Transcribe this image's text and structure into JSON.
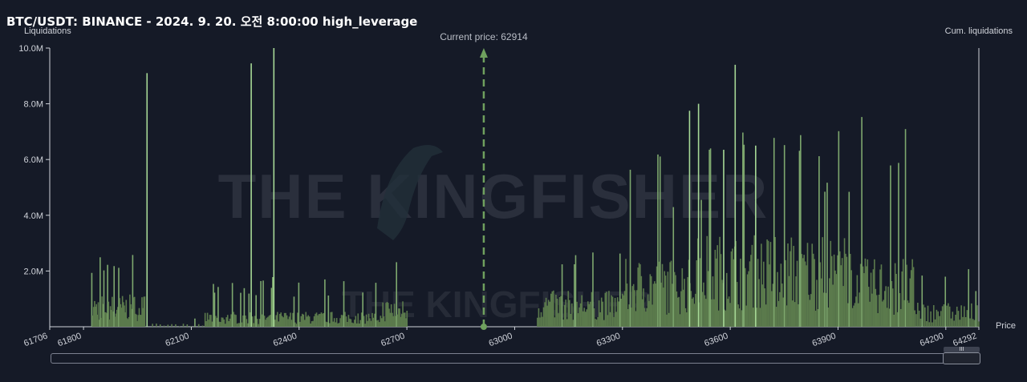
{
  "chart_data": {
    "type": "bar",
    "title": "BTC/USDT: BINANCE - 2024. 9. 20. 오전 8:00:00 high_leverage",
    "ylabel": "Liquidations",
    "y2label": "Cum. liquidations",
    "xlabel": "Price",
    "xlim": [
      61706,
      64292
    ],
    "ylim": [
      0,
      10000000
    ],
    "y_ticks": [
      {
        "value": 2000000,
        "label": "2.0M"
      },
      {
        "value": 4000000,
        "label": "4.0M"
      },
      {
        "value": 6000000,
        "label": "6.0M"
      },
      {
        "value": 8000000,
        "label": "8.0M"
      },
      {
        "value": 10000000,
        "label": "10.0M"
      }
    ],
    "x_ticks": [
      61706,
      61800,
      62100,
      62400,
      62700,
      63000,
      63300,
      63600,
      63900,
      64200,
      64292
    ],
    "current_price": 62914,
    "current_price_label": "Current price: 62914",
    "watermark": "THE KINGFISHER",
    "colors": {
      "background": "#151a27",
      "bar": "#5b7a4c",
      "bar_highlight": "#a6d896",
      "current_price_line": "#6fa05e"
    },
    "tall_bars": [
      {
        "price": 61975,
        "value": 9100000
      },
      {
        "price": 62265,
        "value": 9450000
      },
      {
        "price": 62328,
        "value": 10000000
      },
      {
        "price": 63485,
        "value": 7750000
      },
      {
        "price": 63510,
        "value": 8000000
      },
      {
        "price": 63580,
        "value": 6350000
      },
      {
        "price": 63612,
        "value": 9400000
      },
      {
        "price": 63669,
        "value": 6500000
      }
    ],
    "clusters": [
      {
        "from": 61820,
        "to": 61970,
        "avg": 800000,
        "max": 2700000,
        "bars": 58
      },
      {
        "from": 61985,
        "to": 62135,
        "avg": 80000,
        "max": 300000,
        "bars": 14
      },
      {
        "from": 62135,
        "to": 62630,
        "avg": 380000,
        "max": 1800000,
        "bars": 150
      },
      {
        "from": 62630,
        "to": 62700,
        "avg": 700000,
        "max": 2800000,
        "bars": 24
      },
      {
        "from": 63060,
        "to": 63300,
        "avg": 900000,
        "max": 3100000,
        "bars": 70
      },
      {
        "from": 63300,
        "to": 63500,
        "avg": 1700000,
        "max": 6900000,
        "bars": 65
      },
      {
        "from": 63500,
        "to": 63950,
        "avg": 2300000,
        "max": 7300000,
        "bars": 140
      },
      {
        "from": 63950,
        "to": 64110,
        "avg": 1700000,
        "max": 7600000,
        "bars": 50
      },
      {
        "from": 64110,
        "to": 64292,
        "avg": 600000,
        "max": 2100000,
        "bars": 45
      }
    ]
  },
  "scrollbar": {
    "handle_glyph": "III"
  }
}
